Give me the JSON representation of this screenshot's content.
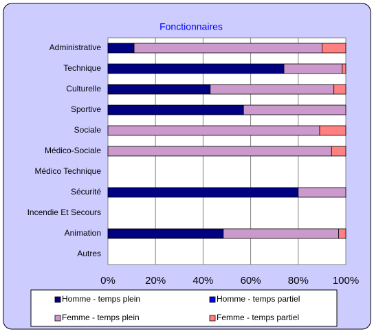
{
  "chart_data": {
    "type": "stacked-barh",
    "title": "Fonctionnaires",
    "categories": [
      "Administrative",
      "Technique",
      "Culturelle",
      "Sportive",
      "Sociale",
      "Médico-Sociale",
      "Médico Technique",
      "Sécurité",
      "Incendie Et Secours",
      "Animation",
      "Autres"
    ],
    "series": [
      {
        "name": "Homme - temps plein",
        "color": "#000080",
        "values": [
          11,
          74,
          43,
          57,
          0,
          0,
          0,
          80,
          0,
          48.5,
          0
        ]
      },
      {
        "name": "Homme - temps partiel",
        "color": "#0000ff",
        "values": [
          0,
          0,
          0,
          0,
          0,
          0,
          0,
          0,
          0,
          0,
          0
        ]
      },
      {
        "name": "Femme - temps plein",
        "color": "#cc99cc",
        "values": [
          79,
          24.5,
          52,
          43,
          89,
          94,
          0,
          20,
          0,
          48.5,
          0
        ]
      },
      {
        "name": "Femme - temps partiel",
        "color": "#ff8080",
        "values": [
          10,
          1.5,
          5,
          0,
          11,
          6,
          0,
          0,
          0,
          3,
          0
        ]
      }
    ],
    "xlim": [
      0,
      100
    ],
    "xticks": [
      {
        "value": 0,
        "label": "0%"
      },
      {
        "value": 20,
        "label": "20%"
      },
      {
        "value": 40,
        "label": "40%"
      },
      {
        "value": 60,
        "label": "60%"
      },
      {
        "value": 80,
        "label": "80%"
      },
      {
        "value": 100,
        "label": "100%"
      }
    ],
    "grid": true
  }
}
